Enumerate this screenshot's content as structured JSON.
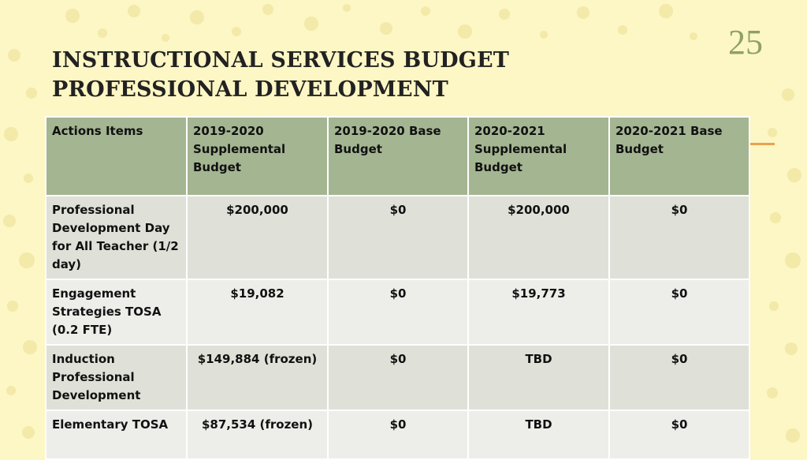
{
  "slide": {
    "title_line1": "INSTRUCTIONAL SERVICES BUDGET",
    "title_line2": "PROFESSIONAL DEVELOPMENT",
    "page_number": "25"
  },
  "colors": {
    "background": "#fdf6c5",
    "header_fill": "#a4b592",
    "row_fill_dark": "#dfe1d8",
    "row_fill_light": "#edeeea",
    "accent": "#e8a24f",
    "page_number": "#8fa068"
  },
  "table": {
    "headers": [
      "Actions Items",
      "2019-2020 Supplemental Budget",
      "2019-2020 Base Budget",
      "2020-2021 Supplemental Budget",
      "2020-2021 Base Budget"
    ],
    "rows": [
      [
        "Professional Development Day for All Teacher (1/2 day)",
        "$200,000",
        "$0",
        "$200,000",
        "$0"
      ],
      [
        "Engagement Strategies TOSA (0.2 FTE)",
        "$19,082",
        "$0",
        "$19,773",
        "$0"
      ],
      [
        "Induction Professional Development",
        "$149,884 (frozen)",
        "$0",
        "TBD",
        "$0"
      ],
      [
        "Elementary TOSA",
        "$87,534 (frozen)",
        "$0",
        "TBD",
        "$0"
      ]
    ]
  }
}
